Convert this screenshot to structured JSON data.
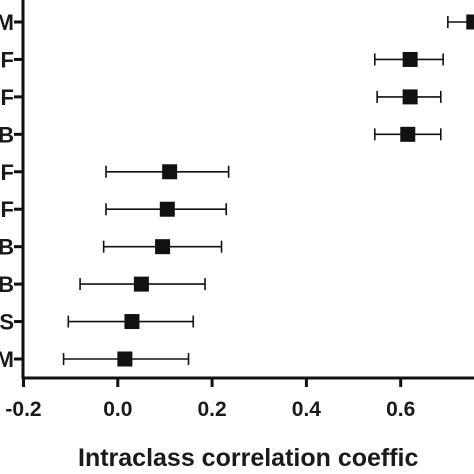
{
  "chart_data": {
    "type": "scatter",
    "style": "forest-plot",
    "xlabel": "Intraclass correlation coeffic",
    "xlim": [
      -0.2,
      0.75
    ],
    "xticks": [
      -0.2,
      0.0,
      0.2,
      0.4,
      0.6
    ],
    "xtick_labels": [
      "-0.2",
      "0.0",
      "0.2",
      "0.4",
      "0.6"
    ],
    "rows": [
      {
        "label": "M",
        "estimate": 0.755,
        "lower": 0.7,
        "upper": 0.8
      },
      {
        "label": "F",
        "estimate": 0.62,
        "lower": 0.545,
        "upper": 0.69
      },
      {
        "label": "F",
        "estimate": 0.62,
        "lower": 0.55,
        "upper": 0.685
      },
      {
        "label": "B",
        "estimate": 0.615,
        "lower": 0.545,
        "upper": 0.685
      },
      {
        "label": "F",
        "estimate": 0.11,
        "lower": -0.025,
        "upper": 0.235
      },
      {
        "label": "F",
        "estimate": 0.105,
        "lower": -0.025,
        "upper": 0.23
      },
      {
        "label": "B",
        "estimate": 0.095,
        "lower": -0.03,
        "upper": 0.22
      },
      {
        "label": "B",
        "estimate": 0.05,
        "lower": -0.08,
        "upper": 0.185
      },
      {
        "label": "S",
        "estimate": 0.03,
        "lower": -0.105,
        "upper": 0.16
      },
      {
        "label": "M",
        "estimate": 0.015,
        "lower": -0.115,
        "upper": 0.15
      }
    ],
    "marker": "square",
    "marker_color": "#111111",
    "line_color": "#111111",
    "grid": false
  }
}
